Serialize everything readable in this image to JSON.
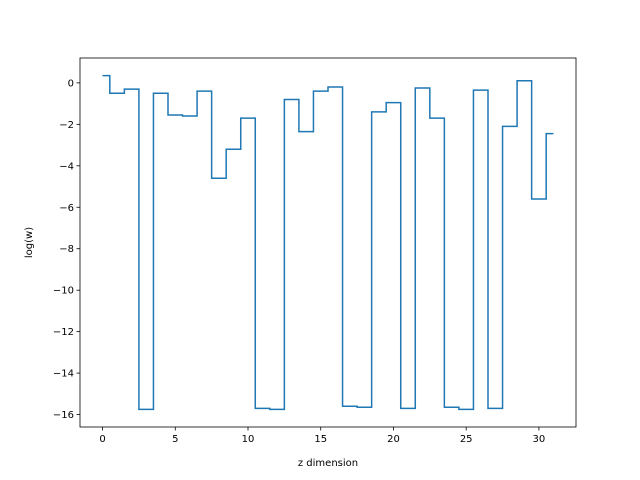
{
  "chart_data": {
    "type": "line",
    "drawstyle": "steps-mid",
    "title": "",
    "xlabel": "z dimension",
    "ylabel": "log(w)",
    "xlim": [
      -1.55,
      32.55
    ],
    "ylim": [
      -16.6,
      1.2
    ],
    "xticks": [
      0,
      5,
      10,
      15,
      20,
      25,
      30
    ],
    "yticks": [
      0,
      -2,
      -4,
      -6,
      -8,
      -10,
      -12,
      -14,
      -16
    ],
    "grid": false,
    "line_color": "#1f77b4",
    "x": [
      0,
      1,
      2,
      3,
      4,
      5,
      6,
      7,
      8,
      9,
      10,
      11,
      12,
      13,
      14,
      15,
      16,
      17,
      18,
      19,
      20,
      21,
      22,
      23,
      24,
      25,
      26,
      27,
      28,
      29,
      30,
      31
    ],
    "values": [
      0.35,
      -0.5,
      -0.3,
      -15.75,
      -0.5,
      -1.55,
      -1.6,
      -0.4,
      -4.6,
      -3.2,
      -1.7,
      -15.7,
      -15.75,
      -0.8,
      -2.35,
      -0.4,
      -0.2,
      -15.6,
      -15.65,
      -1.4,
      -0.95,
      -15.7,
      -0.25,
      -1.7,
      -15.65,
      -15.75,
      -0.35,
      -15.7,
      -2.1,
      0.1,
      -5.6,
      -2.45
    ]
  }
}
